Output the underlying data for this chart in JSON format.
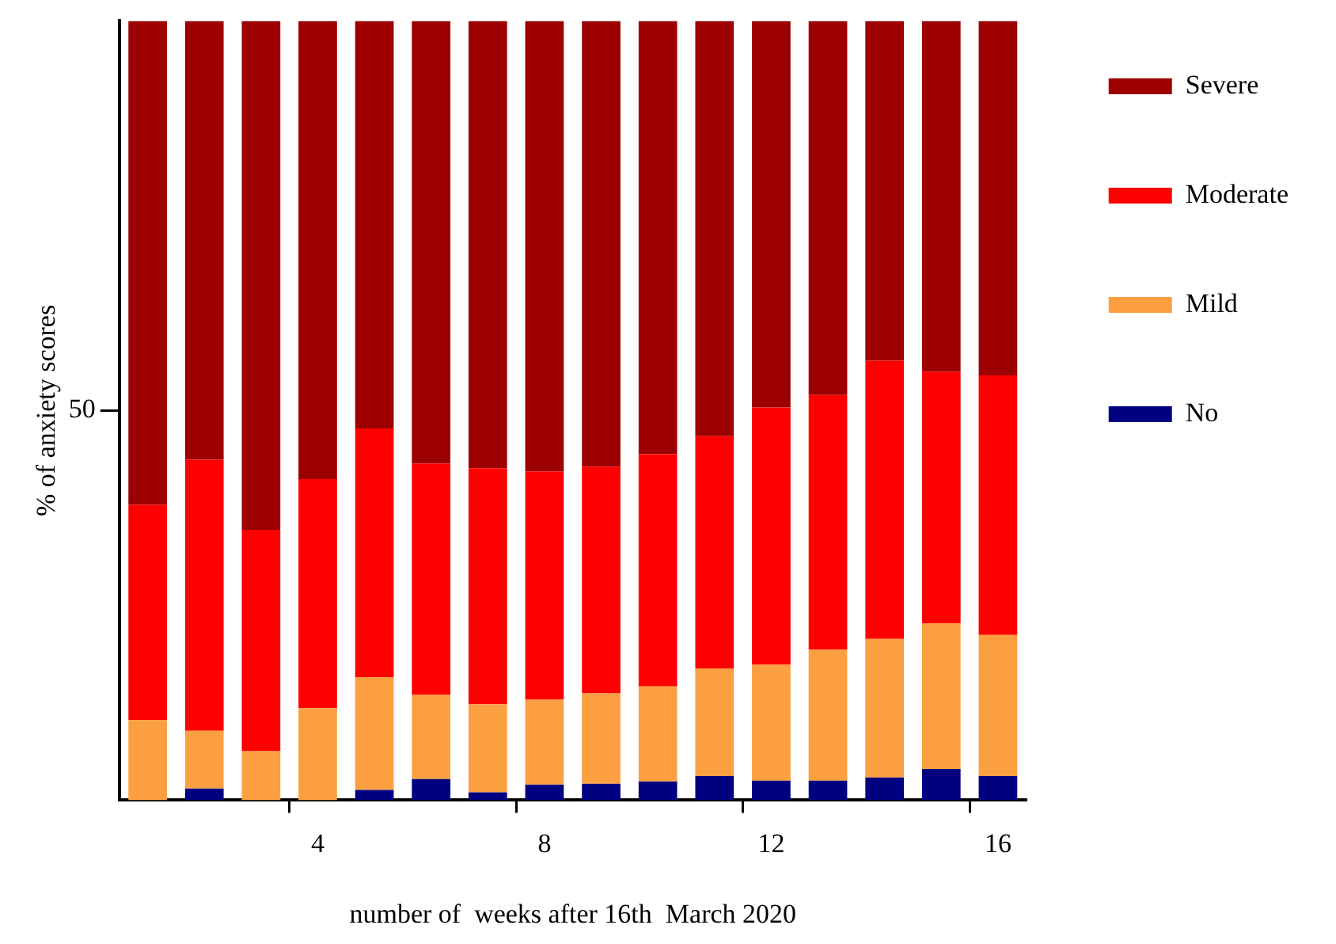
{
  "chart_data": {
    "type": "bar",
    "stacked": true,
    "xlabel": "number of  weeks after 16th  March 2020",
    "ylabel": "% of anxiety scores",
    "categories": [
      null,
      null,
      null,
      "4",
      null,
      null,
      null,
      "8",
      null,
      null,
      null,
      "12",
      null,
      null,
      null,
      "16"
    ],
    "ylim": [
      0,
      100
    ],
    "yticks": [
      50
    ],
    "grid": false,
    "legend": "right",
    "series": [
      {
        "name": "No",
        "color": "#000080",
        "values": [
          0,
          1.5,
          0,
          0,
          1.3,
          2.7,
          1.0,
          2.0,
          2.1,
          2.4,
          3.1,
          2.5,
          2.5,
          2.9,
          4.0,
          3.1
        ]
      },
      {
        "name": "Mild",
        "color": "#fc9f41",
        "values": [
          10.3,
          7.4,
          6.3,
          11.8,
          14.5,
          10.8,
          11.3,
          10.9,
          11.6,
          12.2,
          13.8,
          14.9,
          16.8,
          17.8,
          18.7,
          18.1
        ]
      },
      {
        "name": "Moderate",
        "color": "#ff0000",
        "values": [
          27.6,
          34.8,
          28.4,
          29.4,
          31.9,
          29.7,
          30.3,
          29.3,
          29.1,
          29.8,
          29.8,
          33.0,
          32.7,
          35.7,
          32.3,
          33.3
        ]
      },
      {
        "name": "Severe",
        "color": "#9c0000",
        "values": [
          62.1,
          56.3,
          65.3,
          58.8,
          52.3,
          56.8,
          57.4,
          57.8,
          57.2,
          55.6,
          53.3,
          49.6,
          48.0,
          43.6,
          45.0,
          45.5
        ]
      }
    ]
  }
}
